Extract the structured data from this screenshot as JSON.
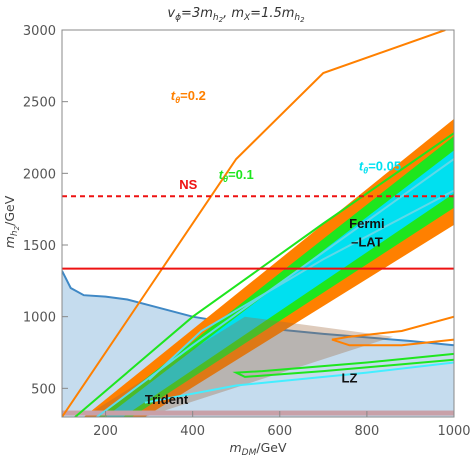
{
  "chart_data": {
    "type": "area",
    "title": "vϕ=3mh2, mX=1.5mh2",
    "title_parts": {
      "v": "v",
      "v_sub": "ϕ",
      "eq1": "=3m",
      "h1": "h",
      "h1_sub": "2",
      "sep": ", m",
      "x_sub": "X",
      "eq2": "=1.5m",
      "h2": "h",
      "h2_sub": "2"
    },
    "xlabel": "mDM/GeV",
    "xlabel_parts": {
      "m": "m",
      "sub": "DM",
      "unit": "/GeV"
    },
    "ylabel": "mh2/GeV",
    "ylabel_parts": {
      "m": "m",
      "sub": "h",
      "subsub": "2",
      "unit": "/GeV"
    },
    "xlim": [
      100,
      1000
    ],
    "ylim": [
      300,
      3000
    ],
    "xticks": [
      "200",
      "400",
      "600",
      "800",
      "1000"
    ],
    "yticks": [
      "500",
      "1000",
      "1500",
      "2000",
      "2500",
      "3000"
    ],
    "grid": false,
    "colors": {
      "orange": "#ff8000",
      "green": "#1ee61e",
      "cyan": "#00e0f0",
      "lz_fill": "#c5dcee",
      "lz_line": "#3f88c5",
      "ns_red": "#ee1111",
      "trident": "#c8a0a8",
      "cyan_line": "#5fd8e8"
    },
    "series": [
      {
        "name": "LZ",
        "kind": "exclusion-region",
        "x": [
          100,
          120,
          150,
          200,
          250,
          300,
          400,
          500,
          600,
          700,
          800,
          900,
          1000
        ],
        "y": [
          1320,
          1200,
          1150,
          1140,
          1120,
          1080,
          1000,
          950,
          910,
          880,
          855,
          830,
          800
        ]
      },
      {
        "name": "NS",
        "kind": "horizontal-lines",
        "y_dashed": 1840,
        "y_solid": 1335
      },
      {
        "name": "Trident",
        "kind": "band",
        "y_range": [
          310,
          345
        ]
      },
      {
        "name": "Fermi-LAT",
        "kind": "exclusion-band"
      },
      {
        "name": "tθ=0.2",
        "kind": "contour",
        "upper": {
          "x": [
            100,
            300,
            500,
            700,
            980
          ],
          "y": [
            300,
            1200,
            2100,
            2700,
            3000
          ]
        },
        "lower": {
          "x": [
            760,
            850,
            920,
            1000
          ],
          "y": [
            850,
            860,
            920,
            980
          ]
        }
      },
      {
        "name": "tθ=0.1",
        "kind": "contour",
        "upper": {
          "x": [
            130,
            400,
            700,
            1000
          ],
          "y": [
            300,
            1000,
            1650,
            2280
          ]
        },
        "lower": {
          "x": [
            330,
            550,
            800,
            1000
          ],
          "y": [
            650,
            600,
            660,
            720
          ]
        }
      },
      {
        "name": "tθ=0.05",
        "kind": "contour",
        "upper": {
          "x": [
            180,
            400,
            700,
            1000
          ],
          "y": [
            300,
            800,
            1450,
            2100
          ]
        },
        "lower": {
          "x": [
            290,
            500,
            800,
            1000
          ],
          "y": [
            400,
            500,
            600,
            680
          ]
        }
      }
    ],
    "annotations": [
      {
        "text": "NS",
        "color": "#ee1111",
        "x": 390,
        "y": 1890
      },
      {
        "text": "Fermi",
        "color": "#111111",
        "x": 800,
        "y": 1620
      },
      {
        "text": "–LAT",
        "color": "#111111",
        "x": 800,
        "y": 1490
      },
      {
        "text": "LZ",
        "color": "#111111",
        "x": 760,
        "y": 540
      },
      {
        "text": "Trident",
        "color": "#111111",
        "x": 340,
        "y": 390
      },
      {
        "text": "tθ=0.2",
        "t": "t",
        "sub": "θ",
        "rest": "=0.2",
        "color": "#ff8000",
        "x": 390,
        "y": 2510
      },
      {
        "text": "tθ=0.1",
        "t": "t",
        "sub": "θ",
        "rest": "=0.1",
        "color": "#1ee61e",
        "x": 500,
        "y": 1960
      },
      {
        "text": "tθ=0.05",
        "t": "t",
        "sub": "θ",
        "rest": "=0.05",
        "color": "#00e0f0",
        "x": 830,
        "y": 2020
      }
    ]
  }
}
